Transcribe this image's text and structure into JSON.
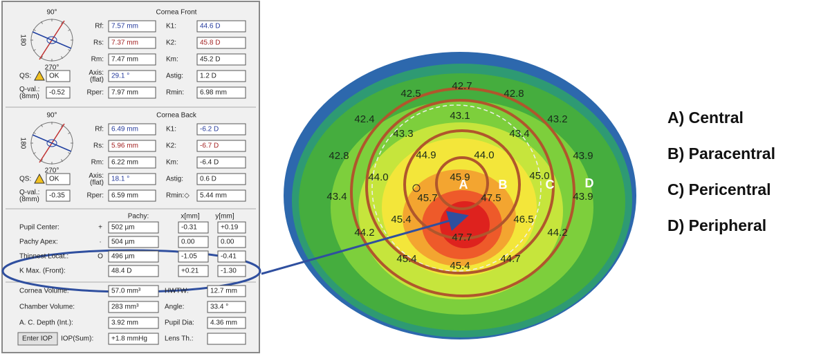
{
  "panel": {
    "front": {
      "title": "Cornea Front",
      "dial": [
        "90°",
        "180",
        "270°"
      ],
      "rows": [
        [
          {
            "label": "Rf:",
            "value": "7.57 mm",
            "color": "#23399b"
          },
          {
            "label": "K1:",
            "value": "44.6 D",
            "color": "#23399b"
          }
        ],
        [
          {
            "label": "Rs:",
            "value": "7.37 mm",
            "color": "#a32323"
          },
          {
            "label": "K2:",
            "value": "45.8 D",
            "color": "#a32323"
          }
        ],
        [
          {
            "label": "Rm:",
            "value": "7.47 mm"
          },
          {
            "label": "Km:",
            "value": "45.2 D"
          }
        ],
        [
          {
            "label": "QS:",
            "value": "OK"
          },
          {
            "label": "Axis:\n(flat)",
            "value": "29.1 °",
            "color": "#23399b"
          },
          {
            "label": "Astig:",
            "value": "1.2 D"
          }
        ],
        [
          {
            "label": "Q-val.:\n(8mm)",
            "value": "-0.52"
          },
          {
            "label": "Rper:",
            "value": "7.97 mm"
          },
          {
            "label": "Rmin:",
            "value": "6.98 mm"
          }
        ]
      ]
    },
    "back": {
      "title": "Cornea Back",
      "dial": [
        "90°",
        "180",
        "270°"
      ],
      "rows": [
        [
          {
            "label": "Rf:",
            "value": "6.49 mm",
            "color": "#23399b"
          },
          {
            "label": "K1:",
            "value": "-6.2 D",
            "color": "#23399b"
          }
        ],
        [
          {
            "label": "Rs:",
            "value": "5.96 mm",
            "color": "#a32323"
          },
          {
            "label": "K2:",
            "value": "-6.7 D",
            "color": "#a32323"
          }
        ],
        [
          {
            "label": "Rm:",
            "value": "6.22 mm"
          },
          {
            "label": "Km:",
            "value": "-6.4 D"
          }
        ],
        [
          {
            "label": "QS:",
            "value": "OK"
          },
          {
            "label": "Axis:\n(flat)",
            "value": "18.1 °",
            "color": "#23399b"
          },
          {
            "label": "Astig:",
            "value": "0.6 D"
          }
        ],
        [
          {
            "label": "Q-val.:\n(8mm)",
            "value": "-0.35"
          },
          {
            "label": "Rper:",
            "value": "6.59 mm"
          },
          {
            "label": "Rmin:◇",
            "value": "5.44 mm"
          }
        ]
      ]
    },
    "pachy": {
      "headers": [
        "Pachy:",
        "x[mm]",
        "y[mm]"
      ],
      "rows": [
        {
          "label": "Pupil Center:",
          "symbol": "+",
          "pachy": "502 µm",
          "x": "-0.31",
          "y": "+0.19"
        },
        {
          "label": "Pachy Apex:",
          "symbol": "·",
          "pachy": "504 µm",
          "x": "0.00",
          "y": "0.00"
        },
        {
          "label": "Thinnest Locat.:",
          "symbol": "O",
          "pachy": "496 µm",
          "x": "-1.05",
          "y": "-0.41"
        },
        {
          "label": "K Max. (Front):",
          "pachy": "48.4 D",
          "x": "+0.21",
          "y": "-1.30"
        }
      ]
    },
    "bottom": [
      {
        "label": "Cornea Volume:",
        "value": "57.0 mm³",
        "label2": "HWTW:",
        "value2": "12.7 mm"
      },
      {
        "label": "Chamber Volume:",
        "value": "283 mm³",
        "label2": "Angle:",
        "value2": "33.4 °"
      },
      {
        "label": "A. C. Depth (Int.):",
        "value": "3.92 mm",
        "label2": "Pupil Dia:",
        "value2": "4.36 mm"
      },
      {
        "button": "Enter IOP",
        "label": "IOP(Sum):",
        "value": "+1.8 mmHg",
        "label2": "Lens Th.:"
      }
    ]
  },
  "map": {
    "values": [
      "42.5",
      "42.7",
      "42.8",
      "42.4",
      "43.1",
      "43.2",
      "43.3",
      "43.4",
      "42.8",
      "44.9",
      "44.0",
      "43.9",
      "44.0",
      "45.9",
      "45.0",
      "43.4",
      "45.7",
      "47.5",
      "43.9",
      "45.4",
      "46.5",
      "44.2",
      "47.7",
      "44.2",
      "45.4",
      "45.4",
      "44.7"
    ],
    "rings": [
      "A",
      "B",
      "C",
      "D"
    ]
  },
  "legend": [
    "A) Central",
    "B) Paracentral",
    "C) Pericentral",
    "D) Peripheral"
  ]
}
